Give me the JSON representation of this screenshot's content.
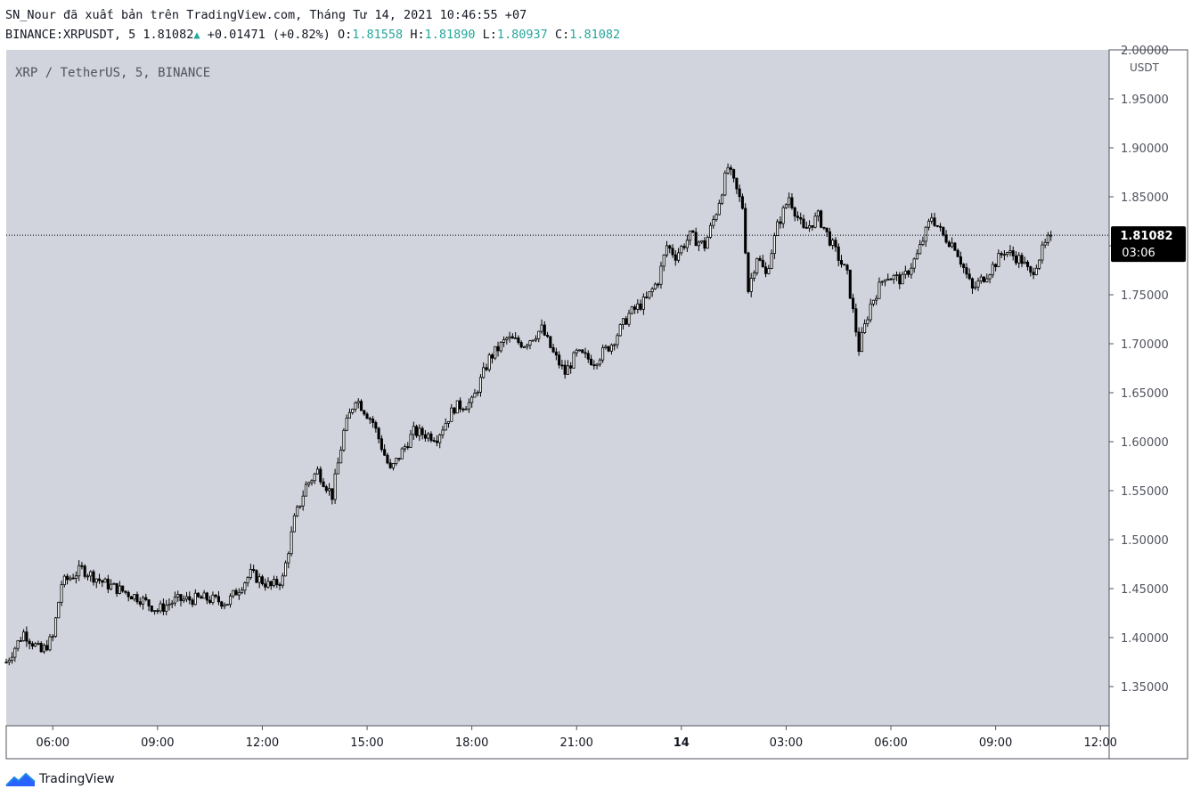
{
  "header": {
    "line1": "SN_Nour đã xuất bản trên TradingView.com, Tháng Tư 14, 2021 10:46:55 +07",
    "symbol_prefix": "BINANCE:XRPUSDT, 5 1.81082",
    "arrow": "▲",
    "change": " +0.01471 (+0.82%) ",
    "o_label": "O:",
    "o_value": "1.81558",
    "h_label": "H:",
    "h_value": "1.81890",
    "l_label": "L:",
    "l_value": "1.80937",
    "c_label": "C:",
    "c_value": "1.81082"
  },
  "footer": {
    "brand": "TradingView"
  },
  "colors": {
    "pane_bg": "#d1d4dc",
    "candle": "#000000",
    "accent_up": "#26a69a",
    "price_tag_bg": "#000000"
  },
  "chart_data": {
    "type": "candlestick",
    "title": "XRP / TetherUS, 5, BINANCE",
    "y_unit": "USDT",
    "ylim": [
      1.31,
      2.0
    ],
    "y_ticks": [
      2.0,
      1.95,
      1.9,
      1.85,
      1.8,
      1.75,
      1.7,
      1.65,
      1.6,
      1.55,
      1.5,
      1.45,
      1.4,
      1.35
    ],
    "y_tick_labels": [
      "2.00000",
      "1.95000",
      "1.90000",
      "1.85000",
      "1.80000",
      "1.75000",
      "1.70000",
      "1.65000",
      "1.60000",
      "1.55000",
      "1.50000",
      "1.45000",
      "1.40000",
      "1.35000"
    ],
    "x_range": [
      "2021-04-13 04:40",
      "2021-04-14 12:15"
    ],
    "x_ticks": [
      {
        "t": "2021-04-13 06:00",
        "label": "06:00"
      },
      {
        "t": "2021-04-13 09:00",
        "label": "09:00"
      },
      {
        "t": "2021-04-13 12:00",
        "label": "12:00"
      },
      {
        "t": "2021-04-13 15:00",
        "label": "15:00"
      },
      {
        "t": "2021-04-13 18:00",
        "label": "18:00"
      },
      {
        "t": "2021-04-13 21:00",
        "label": "21:00"
      },
      {
        "t": "2021-04-14 00:00",
        "label": "14"
      },
      {
        "t": "2021-04-14 03:00",
        "label": "03:00"
      },
      {
        "t": "2021-04-14 06:00",
        "label": "06:00"
      },
      {
        "t": "2021-04-14 09:00",
        "label": "09:00"
      },
      {
        "t": "2021-04-14 12:00",
        "label": "12:00"
      }
    ],
    "bar_interval_minutes": 5,
    "first_bar_time": "2021-04-13 04:40",
    "last_price": 1.81082,
    "countdown": "03:06",
    "close_path": [
      [
        "2021-04-13 04:40",
        1.375
      ],
      [
        "2021-04-13 05:10",
        1.405
      ],
      [
        "2021-04-13 05:40",
        1.385
      ],
      [
        "2021-04-13 06:00",
        1.4
      ],
      [
        "2021-04-13 06:15",
        1.455
      ],
      [
        "2021-04-13 06:50",
        1.47
      ],
      [
        "2021-04-13 07:30",
        1.455
      ],
      [
        "2021-04-13 08:30",
        1.44
      ],
      [
        "2021-04-13 09:00",
        1.428
      ],
      [
        "2021-04-13 09:30",
        1.438
      ],
      [
        "2021-04-13 10:20",
        1.44
      ],
      [
        "2021-04-13 11:00",
        1.436
      ],
      [
        "2021-04-13 11:40",
        1.465
      ],
      [
        "2021-04-13 12:15",
        1.452
      ],
      [
        "2021-04-13 12:35",
        1.46
      ],
      [
        "2021-04-13 12:55",
        1.52
      ],
      [
        "2021-04-13 13:15",
        1.555
      ],
      [
        "2021-04-13 13:35",
        1.57
      ],
      [
        "2021-04-13 14:00",
        1.545
      ],
      [
        "2021-04-13 14:20",
        1.61
      ],
      [
        "2021-04-13 14:40",
        1.645
      ],
      [
        "2021-04-13 15:10",
        1.62
      ],
      [
        "2021-04-13 15:40",
        1.57
      ],
      [
        "2021-04-13 16:20",
        1.61
      ],
      [
        "2021-04-13 17:00",
        1.605
      ],
      [
        "2021-04-13 17:30",
        1.635
      ],
      [
        "2021-04-13 18:00",
        1.64
      ],
      [
        "2021-04-13 18:30",
        1.685
      ],
      [
        "2021-04-13 19:00",
        1.705
      ],
      [
        "2021-04-13 19:30",
        1.7
      ],
      [
        "2021-04-13 20:00",
        1.715
      ],
      [
        "2021-04-13 20:20",
        1.69
      ],
      [
        "2021-04-13 20:40",
        1.67
      ],
      [
        "2021-04-13 21:00",
        1.69
      ],
      [
        "2021-04-13 21:30",
        1.682
      ],
      [
        "2021-04-13 22:00",
        1.7
      ],
      [
        "2021-04-13 22:30",
        1.73
      ],
      [
        "2021-04-13 23:00",
        1.745
      ],
      [
        "2021-04-13 23:20",
        1.765
      ],
      [
        "2021-04-13 23:35",
        1.8
      ],
      [
        "2021-04-13 23:50",
        1.79
      ],
      [
        "2021-04-14 00:15",
        1.81
      ],
      [
        "2021-04-14 00:40",
        1.8
      ],
      [
        "2021-04-14 01:00",
        1.835
      ],
      [
        "2021-04-14 01:20",
        1.88
      ],
      [
        "2021-04-14 01:45",
        1.84
      ],
      [
        "2021-04-14 01:55",
        1.755
      ],
      [
        "2021-04-14 02:10",
        1.79
      ],
      [
        "2021-04-14 02:25",
        1.77
      ],
      [
        "2021-04-14 02:45",
        1.82
      ],
      [
        "2021-04-14 03:05",
        1.85
      ],
      [
        "2021-04-14 03:30",
        1.815
      ],
      [
        "2021-04-14 03:55",
        1.83
      ],
      [
        "2021-04-14 04:20",
        1.8
      ],
      [
        "2021-04-14 04:45",
        1.77
      ],
      [
        "2021-04-14 05:05",
        1.695
      ],
      [
        "2021-04-14 05:25",
        1.74
      ],
      [
        "2021-04-14 05:50",
        1.77
      ],
      [
        "2021-04-14 06:20",
        1.765
      ],
      [
        "2021-04-14 06:45",
        1.79
      ],
      [
        "2021-04-14 07:10",
        1.83
      ],
      [
        "2021-04-14 07:30",
        1.81
      ],
      [
        "2021-04-14 07:50",
        1.8
      ],
      [
        "2021-04-14 08:20",
        1.755
      ],
      [
        "2021-04-14 08:50",
        1.775
      ],
      [
        "2021-04-14 09:15",
        1.795
      ],
      [
        "2021-04-14 09:45",
        1.785
      ],
      [
        "2021-04-14 10:00",
        1.77
      ],
      [
        "2021-04-14 10:20",
        1.795
      ],
      [
        "2021-04-14 10:35",
        1.811
      ]
    ]
  }
}
